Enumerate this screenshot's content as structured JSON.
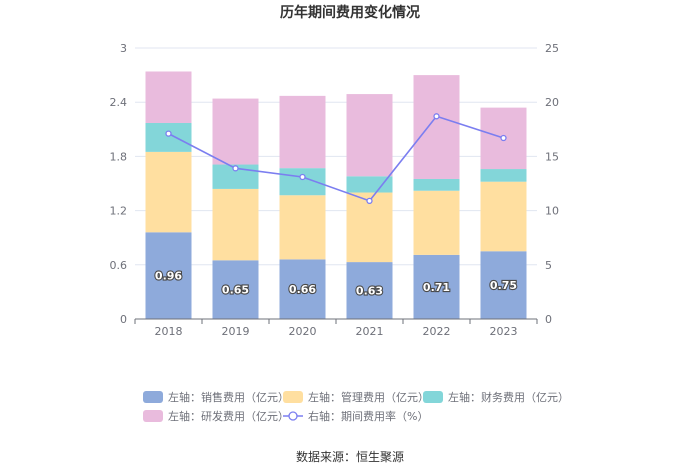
{
  "chart_data": {
    "type": "bar",
    "title": "历年期间费用变化情况",
    "categories": [
      "2018",
      "2019",
      "2020",
      "2021",
      "2022",
      "2023"
    ],
    "left_axis": {
      "min": 0,
      "max": 3,
      "ticks": [
        "0",
        "0.6",
        "1.2",
        "1.8",
        "2.4",
        "3"
      ]
    },
    "right_axis": {
      "min": 0,
      "max": 25,
      "ticks": [
        "0",
        "5",
        "10",
        "15",
        "20",
        "25"
      ]
    },
    "stacked": true,
    "series": [
      {
        "name": "左轴：销售费用（亿元）",
        "axis": "left",
        "color": "#8eaadb",
        "values": [
          0.96,
          0.65,
          0.66,
          0.63,
          0.71,
          0.75
        ],
        "labels": [
          "0.96",
          "0.65",
          "0.66",
          "0.63",
          "0.71",
          "0.75"
        ]
      },
      {
        "name": "左轴：管理费用（亿元）",
        "axis": "left",
        "color": "#ffdfa0",
        "values": [
          0.89,
          0.79,
          0.71,
          0.77,
          0.71,
          0.77
        ]
      },
      {
        "name": "左轴：财务费用（亿元）",
        "axis": "left",
        "color": "#83d6d9",
        "values": [
          0.32,
          0.27,
          0.3,
          0.18,
          0.13,
          0.14
        ]
      },
      {
        "name": "左轴：研发费用（亿元）",
        "axis": "left",
        "color": "#e9bbdd",
        "values": [
          0.57,
          0.73,
          0.8,
          0.91,
          1.15,
          0.68
        ]
      },
      {
        "name": "右轴：期间费用率（%）",
        "axis": "right",
        "type": "line",
        "color": "#7b7ef0",
        "values": [
          17.1,
          13.9,
          13.1,
          10.9,
          18.7,
          16.7
        ]
      }
    ],
    "source": "数据来源：恒生聚源"
  }
}
